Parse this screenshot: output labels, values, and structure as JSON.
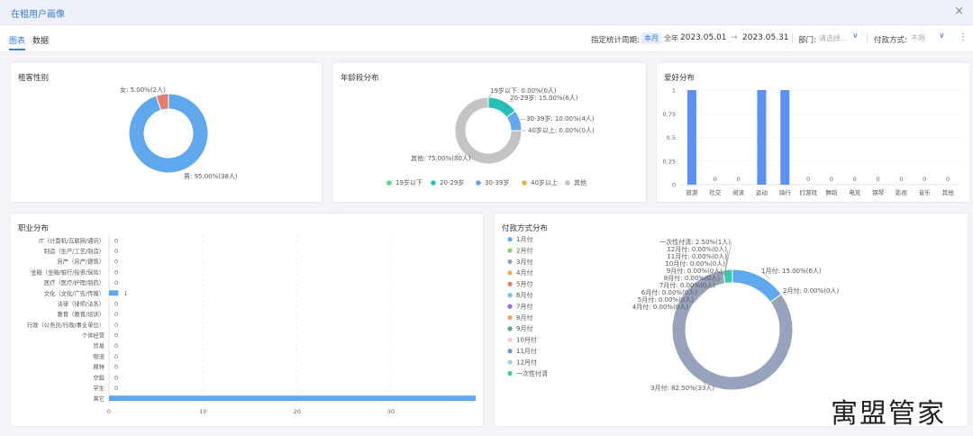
{
  "window": {
    "title": "在租用户画像",
    "close_glyph": "×"
  },
  "tabs": [
    {
      "label": "图表",
      "active": true
    },
    {
      "label": "数据",
      "active": false
    }
  ],
  "filters": {
    "period_label": "指定统计周期:",
    "this_month": "本月",
    "full_year": "全年",
    "start_date": "2023.05.01",
    "arrow": "→",
    "end_date": "2023.05.31",
    "dept_label": "部门:",
    "dept_placeholder": "请选择...",
    "pay_label": "付款方式:",
    "pay_placeholder": "不限",
    "chevron": "∨",
    "more": "⋮"
  },
  "gender": {
    "title": "租客性别",
    "chart_data": {
      "type": "pie",
      "slices": [
        {
          "label": "男",
          "value": 95.0,
          "count": 38,
          "color": "#5fa8ee",
          "text": "男: 95.00%(38人)"
        },
        {
          "label": "女",
          "value": 5.0,
          "count": 2,
          "color": "#e87c6b",
          "text": "女: 5.00%(2人)"
        }
      ]
    }
  },
  "age": {
    "title": "年龄段分布",
    "chart_data": {
      "type": "pie",
      "slices": [
        {
          "label": "19岁以下",
          "value": 0.0,
          "count": 0,
          "color": "#5fd38d",
          "text": "19岁以下: 0.00%(0人)"
        },
        {
          "label": "20-29岁",
          "value": 15.0,
          "count": 6,
          "color": "#26c0b8",
          "text": "20-29岁: 15.00%(6人)"
        },
        {
          "label": "30-39岁",
          "value": 10.0,
          "count": 4,
          "color": "#5fa8ee",
          "text": "30-39岁: 10.00%(4人)"
        },
        {
          "label": "40岁以上",
          "value": 0.0,
          "count": 0,
          "color": "#f0b048",
          "text": "40岁以上: 0.00%(0人)"
        },
        {
          "label": "其他",
          "value": 75.0,
          "count": 30,
          "color": "#c3c3c3",
          "text": "其他: 75.00%(30人)"
        }
      ]
    }
  },
  "hobby": {
    "title": "爱好分布",
    "chart_data": {
      "type": "bar",
      "categories": [
        "旅游",
        "社交",
        "阅读",
        "运动",
        "骑行",
        "打游戏",
        "舞蹈",
        "电竞",
        "钢琴",
        "影视",
        "音乐",
        "其他"
      ],
      "values": [
        1,
        0,
        0,
        1,
        1,
        0,
        0,
        0,
        0,
        0,
        0,
        0
      ],
      "yticks": [
        "0",
        "0.25",
        "0.5",
        "0.75",
        "1"
      ],
      "ylim": [
        0,
        1
      ],
      "color": "#5b8ff9"
    }
  },
  "job": {
    "title": "职业分布",
    "chart_data": {
      "type": "bar",
      "orientation": "horizontal",
      "categories": [
        "IT（计算机/互联网/通讯）",
        "制造（生产/工艺/制造）",
        "房产（房产/建筑）",
        "金融（金融/银行/投资/保险）",
        "医疗（医疗/护理/制药）",
        "文化（文化/广告/传媒）",
        "法律（律师/法务）",
        "教育（教育/培训）",
        "行政（公务员/行政/事业单位）",
        "个体经营",
        "贸易",
        "物流",
        "模特",
        "空姐",
        "学生",
        "其它"
      ],
      "values": [
        0,
        0,
        0,
        0,
        0,
        1,
        0,
        0,
        0,
        0,
        0,
        0,
        0,
        0,
        0,
        39
      ],
      "xticks": [
        "0",
        "10",
        "20",
        "30"
      ],
      "color": "#5fa8ee"
    }
  },
  "payment": {
    "title": "付款方式分布",
    "chart_data": {
      "type": "pie",
      "slices": [
        {
          "label": "1月付",
          "value": 15.0,
          "count": 6,
          "color": "#5fa8ee",
          "text": "1月付: 15.00%(6人)"
        },
        {
          "label": "2月付",
          "value": 0.0,
          "count": 0,
          "color": "#8fd16a",
          "text": "2月付: 0.00%(0人)"
        },
        {
          "label": "3月付",
          "value": 82.5,
          "count": 33,
          "color": "#97a2bd",
          "text": "3月付: 82.50%(33人)"
        },
        {
          "label": "4月付",
          "value": 0.0,
          "count": 0,
          "color": "#f0b048",
          "text": "4月付: 0.00%(0人)"
        },
        {
          "label": "5月付",
          "value": 0.0,
          "count": 0,
          "color": "#e87c6b",
          "text": "5月付: 0.00%(0人)"
        },
        {
          "label": "6月付",
          "value": 0.0,
          "count": 0,
          "color": "#6ec8f0",
          "text": "6月付: 0.00%(0人)"
        },
        {
          "label": "7月付",
          "value": 0.0,
          "count": 0,
          "color": "#9a6fd0",
          "text": "7月付: 0.00%(0人)"
        },
        {
          "label": "8月付",
          "value": 0.0,
          "count": 0,
          "color": "#f0a45a",
          "text": "8月付: 0.00%(0人)"
        },
        {
          "label": "9月付",
          "value": 0.0,
          "count": 0,
          "color": "#5aa59a",
          "text": "9月付: 0.00%(0人)"
        },
        {
          "label": "10月付",
          "value": 0.0,
          "count": 0,
          "color": "#f5c8d8",
          "text": "10月付: 0.00%(0人)"
        },
        {
          "label": "11月付",
          "value": 0.0,
          "count": 0,
          "color": "#6d8fdc",
          "text": "11月付: 0.00%(0人)"
        },
        {
          "label": "12月付",
          "value": 0.0,
          "count": 0,
          "color": "#9ecfe6",
          "text": "12月付: 0.00%(0人)"
        },
        {
          "label": "一次性付清",
          "value": 2.5,
          "count": 1,
          "color": "#3dc9a8",
          "text": "一次性付清: 2.50%(1人)"
        }
      ]
    }
  },
  "watermark": "寓盟管家"
}
